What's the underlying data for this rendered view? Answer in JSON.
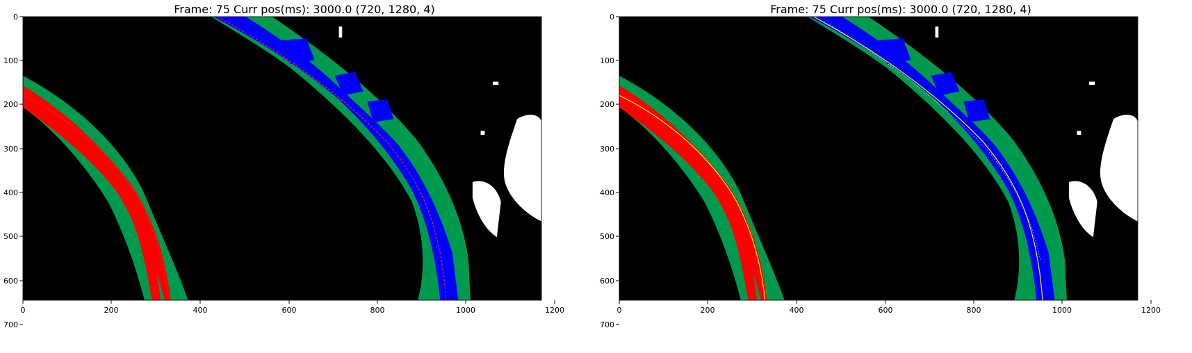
{
  "panels": [
    {
      "title": "Frame: 75   Curr pos(ms): 3000.0   (720, 1280, 4)",
      "x_ticks": [
        "0",
        "200",
        "400",
        "600",
        "800",
        "1000",
        "1200"
      ],
      "y_ticks": [
        "0",
        "100",
        "200",
        "300",
        "400",
        "500",
        "600",
        "700"
      ],
      "fit_line_color": "#ff2020"
    },
    {
      "title": "Frame: 75   Curr pos(ms): 3000.0   (720, 1280, 4)",
      "x_ticks": [
        "0",
        "200",
        "400",
        "600",
        "800",
        "1000",
        "1200"
      ],
      "y_ticks": [
        "0",
        "100",
        "200",
        "300",
        "400",
        "500",
        "600",
        "700"
      ],
      "fit_line_color": "#ffff00"
    }
  ],
  "colors": {
    "background": "#000000",
    "search_band": "#009a4e",
    "left_lane_pixels": "#ff0000",
    "right_lane_pixels": "#0000ff",
    "noise": "#ffffff"
  },
  "image_size": {
    "width": 1280,
    "height": 720
  }
}
